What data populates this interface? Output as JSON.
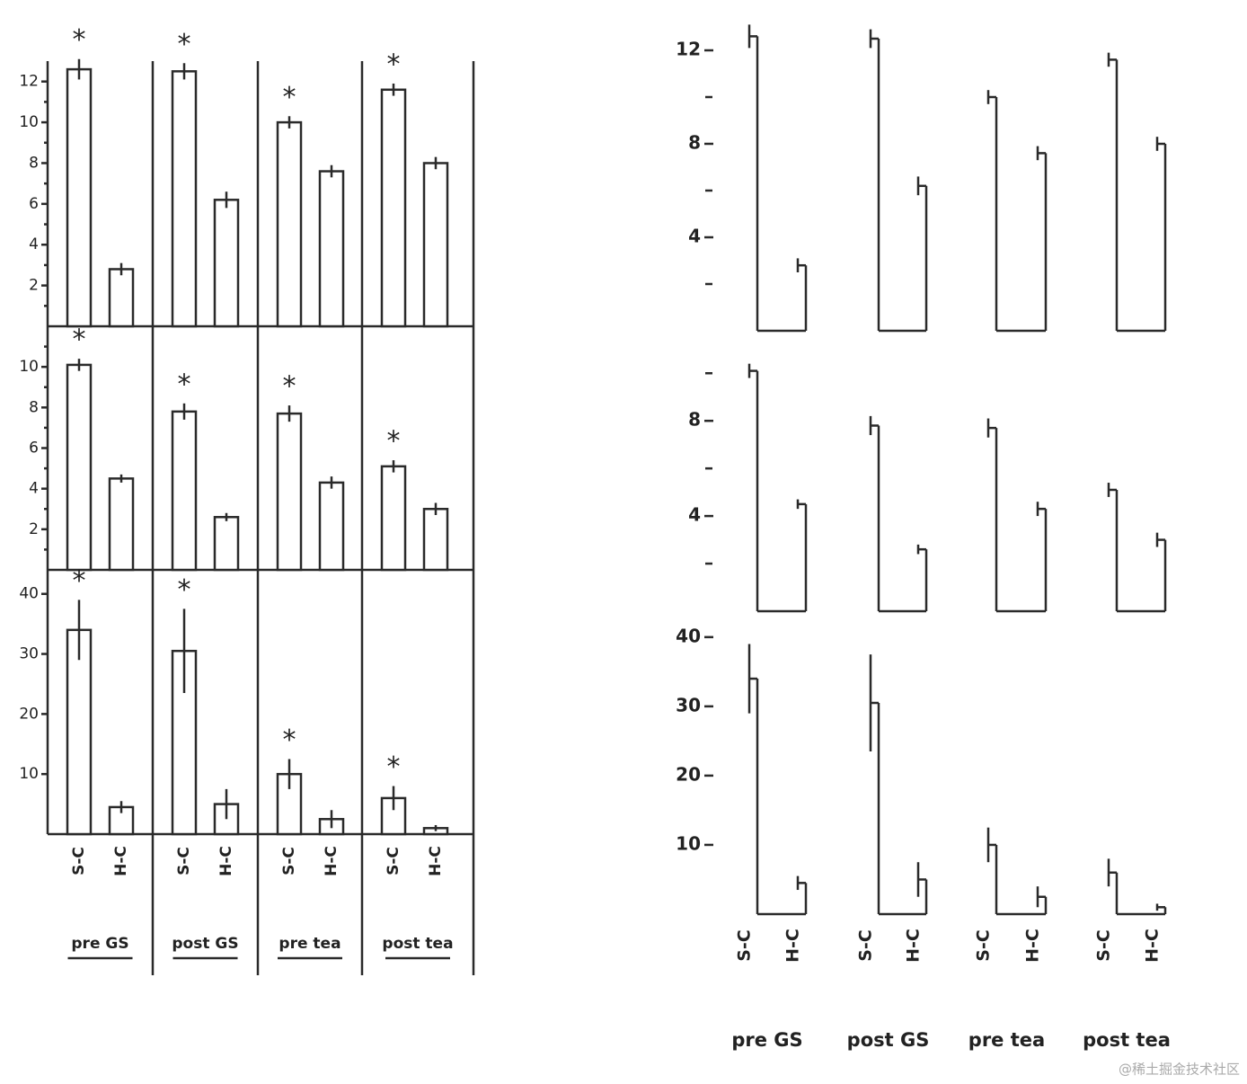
{
  "chart_data": [
    {
      "type": "bar",
      "groups": [
        "pre GS",
        "post GS",
        "pre tea",
        "post tea"
      ],
      "categories": [
        "S-C",
        "H-C"
      ],
      "annotation": "*",
      "panels": [
        {
          "ylim": [
            0,
            13
          ],
          "yticks": [
            2,
            4,
            6,
            8,
            10,
            12
          ],
          "minor_yticks": [
            1,
            3,
            5,
            7,
            9,
            11
          ],
          "values": [
            [
              12.6,
              2.8
            ],
            [
              12.5,
              6.2
            ],
            [
              10.0,
              7.6
            ],
            [
              11.6,
              8.0
            ]
          ],
          "errors": [
            [
              0.5,
              0.3
            ],
            [
              0.4,
              0.4
            ],
            [
              0.3,
              0.3
            ],
            [
              0.3,
              0.3
            ]
          ],
          "significant": [
            [
              true,
              false
            ],
            [
              true,
              false
            ],
            [
              true,
              false
            ],
            [
              true,
              false
            ]
          ]
        },
        {
          "ylim": [
            0,
            12
          ],
          "yticks": [
            2,
            4,
            6,
            8,
            10
          ],
          "minor_yticks": [
            1,
            3,
            5,
            7,
            9,
            11
          ],
          "values": [
            [
              10.1,
              4.5
            ],
            [
              7.8,
              2.6
            ],
            [
              7.7,
              4.3
            ],
            [
              5.1,
              3.0
            ]
          ],
          "errors": [
            [
              0.3,
              0.2
            ],
            [
              0.4,
              0.2
            ],
            [
              0.4,
              0.3
            ],
            [
              0.3,
              0.3
            ]
          ],
          "significant": [
            [
              true,
              false
            ],
            [
              true,
              false
            ],
            [
              true,
              false
            ],
            [
              true,
              false
            ]
          ]
        },
        {
          "ylim": [
            0,
            44
          ],
          "yticks": [
            10,
            20,
            30,
            40
          ],
          "minor_yticks": [],
          "values": [
            [
              34,
              4.5
            ],
            [
              30.5,
              5
            ],
            [
              10,
              2.5
            ],
            [
              6,
              1
            ]
          ],
          "errors": [
            [
              5,
              1
            ],
            [
              7,
              2.5
            ],
            [
              2.5,
              1.5
            ],
            [
              2,
              0.5
            ]
          ],
          "significant": [
            [
              true,
              false
            ],
            [
              true,
              false
            ],
            [
              true,
              false
            ],
            [
              true,
              false
            ]
          ]
        }
      ]
    },
    {
      "type": "step",
      "groups": [
        "pre GS",
        "post GS",
        "pre tea",
        "post tea"
      ],
      "categories": [
        "S-C",
        "H-C"
      ],
      "panels": [
        {
          "ylim": [
            0,
            13
          ],
          "yticks": [
            4,
            8,
            12
          ],
          "minor_yticks": [
            2,
            6,
            10
          ],
          "values": [
            [
              12.6,
              2.8
            ],
            [
              12.5,
              6.2
            ],
            [
              10.0,
              7.6
            ],
            [
              11.6,
              8.0
            ]
          ],
          "errors": [
            [
              0.5,
              0.3
            ],
            [
              0.4,
              0.4
            ],
            [
              0.3,
              0.3
            ],
            [
              0.3,
              0.3
            ]
          ]
        },
        {
          "ylim": [
            0,
            10.5
          ],
          "yticks": [
            4,
            8
          ],
          "minor_yticks": [
            2,
            6,
            10
          ],
          "values": [
            [
              10.1,
              4.5
            ],
            [
              7.8,
              2.6
            ],
            [
              7.7,
              4.3
            ],
            [
              5.1,
              3.0
            ]
          ],
          "errors": [
            [
              0.3,
              0.2
            ],
            [
              0.4,
              0.2
            ],
            [
              0.4,
              0.3
            ],
            [
              0.3,
              0.3
            ]
          ]
        },
        {
          "ylim": [
            0,
            44
          ],
          "yticks": [
            10,
            20,
            30,
            40
          ],
          "minor_yticks": [],
          "values": [
            [
              34,
              4.5
            ],
            [
              30.5,
              5
            ],
            [
              10,
              2.5
            ],
            [
              6,
              1
            ]
          ],
          "errors": [
            [
              5,
              1
            ],
            [
              7,
              2.5
            ],
            [
              2.5,
              1.5
            ],
            [
              2,
              0.5
            ]
          ]
        }
      ]
    }
  ],
  "watermark": "@稀土掘金技术社区"
}
